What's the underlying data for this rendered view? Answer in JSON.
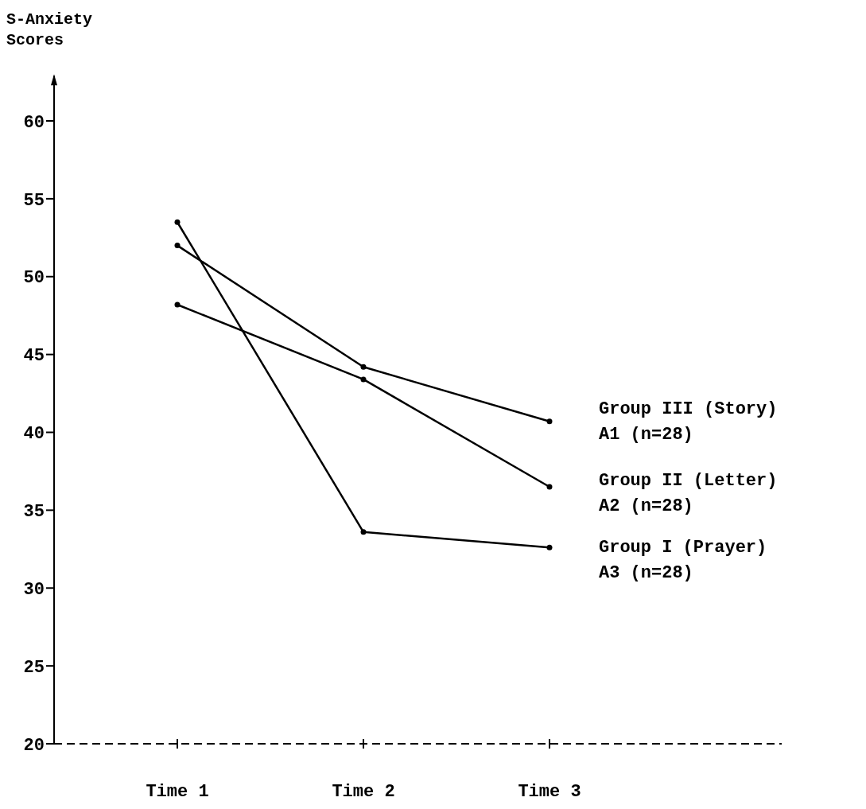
{
  "chart_data": {
    "type": "line",
    "ylabel": "S-Anxiety\nScores",
    "categories": [
      "Time 1",
      "Time 2",
      "Time 3"
    ],
    "ylim": [
      20,
      63
    ],
    "yticks": [
      20,
      25,
      30,
      35,
      40,
      45,
      50,
      55,
      60
    ],
    "grid": false,
    "marker": "circle",
    "line_style": "solid",
    "series": [
      {
        "name": "Group III (Story)\nA1 (n=28)",
        "color": "#000000",
        "values": [
          52.0,
          44.2,
          40.7
        ]
      },
      {
        "name": "Group II (Letter)\nA2 (n=28)",
        "color": "#000000",
        "values": [
          48.2,
          43.4,
          36.5
        ]
      },
      {
        "name": "Group I (Prayer)\nA3 (n=28)",
        "color": "#000000",
        "values": [
          53.5,
          33.6,
          32.6
        ]
      }
    ]
  }
}
